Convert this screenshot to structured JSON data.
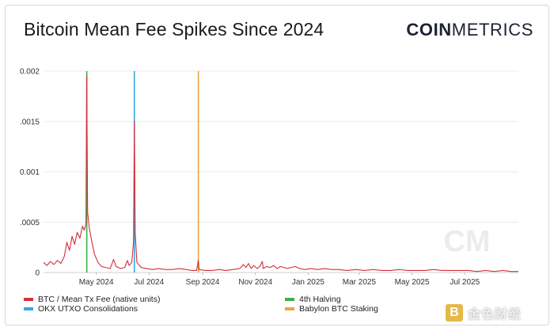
{
  "title": "Bitcoin Mean Fee Spikes Since 2024",
  "brand": {
    "bold": "COIN",
    "light": "METRICS"
  },
  "watermark": {
    "logo_letter": "B",
    "text": "金色财经"
  },
  "chart_data": {
    "type": "line",
    "title": "Bitcoin Mean Fee Spikes Since 2024",
    "ylim": [
      0,
      0.002
    ],
    "y_ticks": [
      {
        "value": 0,
        "label": "0"
      },
      {
        "value": 0.0005,
        "label": ".0005"
      },
      {
        "value": 0.001,
        "label": "0.001"
      },
      {
        "value": 0.0015,
        "label": ".0015"
      },
      {
        "value": 0.002,
        "label": "0.002"
      }
    ],
    "x_ticks": [
      "May 2024",
      "Jul 2024",
      "Sep 2024",
      "Nov 2024",
      "Jan 2025",
      "Mar 2025",
      "May 2025",
      "Jul 2025"
    ],
    "xlim": [
      "2024-03-01",
      "2025-09-01"
    ],
    "grid": true,
    "series": [
      {
        "name": "BTC / Mean Tx Fee (native units)",
        "color": "#d32f3a",
        "points": [
          [
            "2024-03-01",
            0.0001
          ],
          [
            "2024-03-05",
            7e-05
          ],
          [
            "2024-03-09",
            0.00011
          ],
          [
            "2024-03-13",
            8e-05
          ],
          [
            "2024-03-17",
            0.00012
          ],
          [
            "2024-03-21",
            9e-05
          ],
          [
            "2024-03-25",
            0.00016
          ],
          [
            "2024-03-28",
            0.0003
          ],
          [
            "2024-03-31",
            0.00022
          ],
          [
            "2024-04-03",
            0.00036
          ],
          [
            "2024-04-06",
            0.00028
          ],
          [
            "2024-04-09",
            0.0004
          ],
          [
            "2024-04-12",
            0.00034
          ],
          [
            "2024-04-15",
            0.00046
          ],
          [
            "2024-04-17",
            0.00042
          ],
          [
            "2024-04-19",
            0.00048
          ],
          [
            "2024-04-20",
            0.00195
          ],
          [
            "2024-04-21",
            0.0006
          ],
          [
            "2024-04-23",
            0.00044
          ],
          [
            "2024-04-26",
            0.0003
          ],
          [
            "2024-04-29",
            0.00018
          ],
          [
            "2024-05-03",
            0.0001
          ],
          [
            "2024-05-07",
            6e-05
          ],
          [
            "2024-05-12",
            5e-05
          ],
          [
            "2024-05-17",
            4e-05
          ],
          [
            "2024-05-21",
            0.00013
          ],
          [
            "2024-05-24",
            6e-05
          ],
          [
            "2024-05-29",
            4e-05
          ],
          [
            "2024-06-03",
            5e-05
          ],
          [
            "2024-06-06",
            0.00012
          ],
          [
            "2024-06-08",
            7e-05
          ],
          [
            "2024-06-11",
            0.0001
          ],
          [
            "2024-06-13",
            0.0003
          ],
          [
            "2024-06-14",
            0.0015
          ],
          [
            "2024-06-15",
            0.0004
          ],
          [
            "2024-06-17",
            0.0001
          ],
          [
            "2024-06-22",
            5e-05
          ],
          [
            "2024-06-28",
            4e-05
          ],
          [
            "2024-07-05",
            3e-05
          ],
          [
            "2024-07-12",
            4e-05
          ],
          [
            "2024-07-20",
            3e-05
          ],
          [
            "2024-07-28",
            3e-05
          ],
          [
            "2024-08-05",
            4e-05
          ],
          [
            "2024-08-13",
            3e-05
          ],
          [
            "2024-08-20",
            2e-05
          ],
          [
            "2024-08-25",
            2e-05
          ],
          [
            "2024-08-27",
            0.00012
          ],
          [
            "2024-08-28",
            3e-05
          ],
          [
            "2024-09-04",
            2e-05
          ],
          [
            "2024-09-12",
            2e-05
          ],
          [
            "2024-09-20",
            3e-05
          ],
          [
            "2024-09-28",
            2e-05
          ],
          [
            "2024-10-06",
            3e-05
          ],
          [
            "2024-10-14",
            4e-05
          ],
          [
            "2024-10-18",
            8e-05
          ],
          [
            "2024-10-21",
            5e-05
          ],
          [
            "2024-10-24",
            9e-05
          ],
          [
            "2024-10-27",
            4e-05
          ],
          [
            "2024-10-30",
            7e-05
          ],
          [
            "2024-11-03",
            4e-05
          ],
          [
            "2024-11-06",
            6e-05
          ],
          [
            "2024-11-09",
            0.00011
          ],
          [
            "2024-11-10",
            4e-05
          ],
          [
            "2024-11-14",
            6e-05
          ],
          [
            "2024-11-18",
            5e-05
          ],
          [
            "2024-11-22",
            7e-05
          ],
          [
            "2024-11-26",
            4e-05
          ],
          [
            "2024-11-30",
            6e-05
          ],
          [
            "2024-12-04",
            5e-05
          ],
          [
            "2024-12-08",
            4e-05
          ],
          [
            "2024-12-12",
            5e-05
          ],
          [
            "2024-12-17",
            6e-05
          ],
          [
            "2024-12-22",
            4e-05
          ],
          [
            "2024-12-28",
            3e-05
          ],
          [
            "2025-01-04",
            4e-05
          ],
          [
            "2025-01-12",
            3e-05
          ],
          [
            "2025-01-20",
            4e-05
          ],
          [
            "2025-01-28",
            3e-05
          ],
          [
            "2025-02-05",
            3e-05
          ],
          [
            "2025-02-15",
            2e-05
          ],
          [
            "2025-02-25",
            3e-05
          ],
          [
            "2025-03-07",
            2e-05
          ],
          [
            "2025-03-17",
            3e-05
          ],
          [
            "2025-03-27",
            2e-05
          ],
          [
            "2025-04-06",
            2e-05
          ],
          [
            "2025-04-16",
            3e-05
          ],
          [
            "2025-04-26",
            2e-05
          ],
          [
            "2025-05-06",
            2e-05
          ],
          [
            "2025-05-16",
            2e-05
          ],
          [
            "2025-05-26",
            3e-05
          ],
          [
            "2025-06-05",
            2e-05
          ],
          [
            "2025-06-15",
            2e-05
          ],
          [
            "2025-06-25",
            2e-05
          ],
          [
            "2025-07-05",
            2e-05
          ],
          [
            "2025-07-15",
            1e-05
          ],
          [
            "2025-07-25",
            2e-05
          ],
          [
            "2025-08-04",
            1e-05
          ],
          [
            "2025-08-14",
            2e-05
          ],
          [
            "2025-08-24",
            1e-05
          ],
          [
            "2025-09-01",
            1e-05
          ]
        ]
      }
    ],
    "events": [
      {
        "name": "4th Halving",
        "date": "2024-04-20",
        "color": "#3fb04a"
      },
      {
        "name": "OKX UTXO Consolidations",
        "date": "2024-06-14",
        "color": "#35a7e0"
      },
      {
        "name": "Babylon BTC Staking",
        "date": "2024-08-27",
        "color": "#f2a23a"
      }
    ],
    "legend": [
      {
        "label": "BTC / Mean Tx Fee (native units)",
        "color": "#d32f3a"
      },
      {
        "label": "4th Halving",
        "color": "#3fb04a"
      },
      {
        "label": "OKX UTXO Consolidations",
        "color": "#35a7e0"
      },
      {
        "label": "Babylon BTC Staking",
        "color": "#f2a23a"
      }
    ]
  }
}
